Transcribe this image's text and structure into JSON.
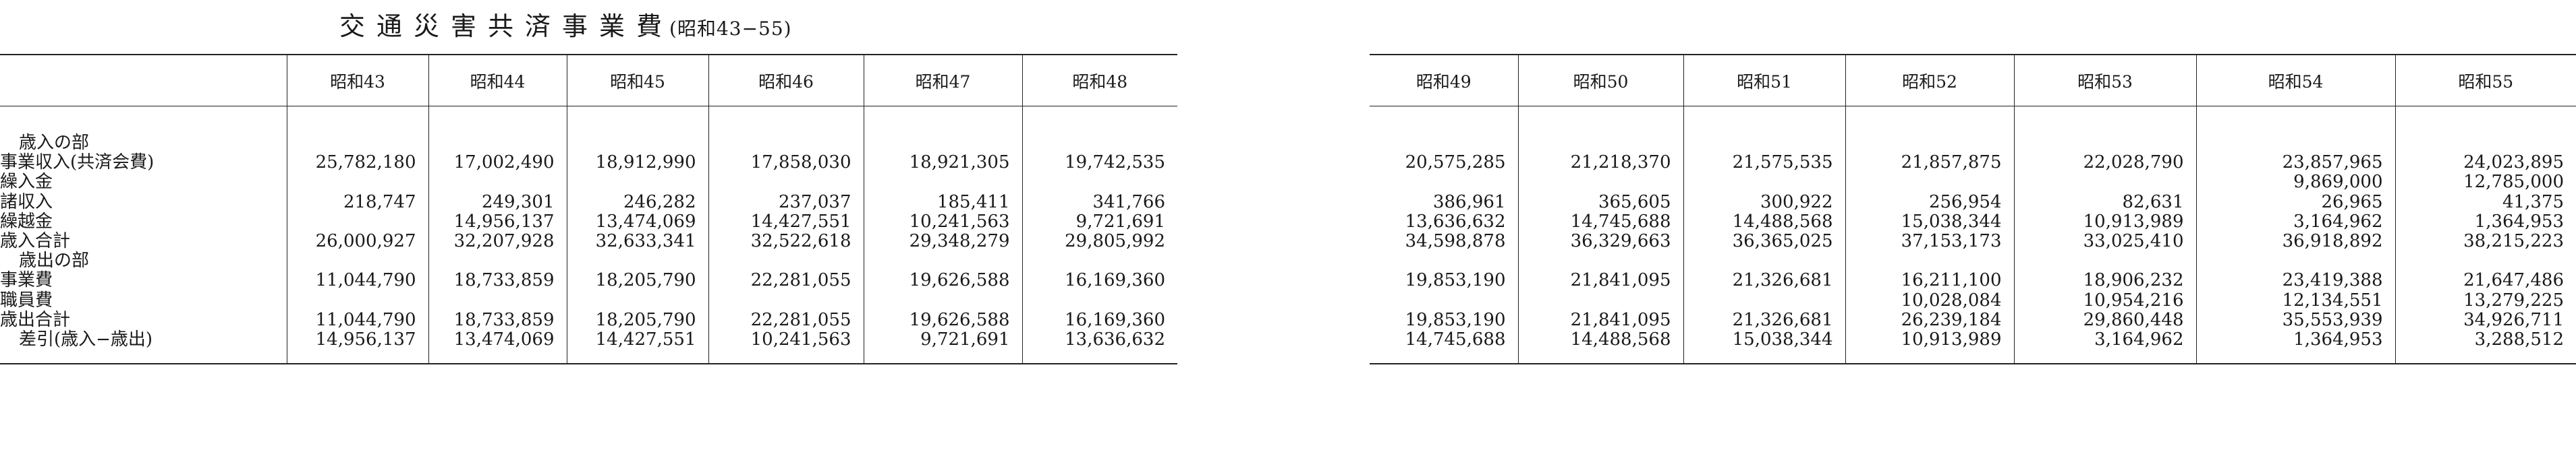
{
  "title": "交通災害共済事業費",
  "subtitle": "(昭和43−55)",
  "left_years": [
    "昭和43",
    "昭和44",
    "昭和45",
    "昭和46",
    "昭和47",
    "昭和48"
  ],
  "right_years": [
    "昭和49",
    "昭和50",
    "昭和51",
    "昭和52",
    "昭和53",
    "昭和54",
    "昭和55"
  ],
  "rows": [
    {
      "label": "歳入の部",
      "left": [
        "",
        "",
        "",
        "",
        "",
        ""
      ],
      "right": [
        "",
        "",
        "",
        "",
        "",
        "",
        ""
      ]
    },
    {
      "label": "事業収入(共済会費)",
      "left": [
        "25,782,180",
        "17,002,490",
        "18,912,990",
        "17,858,030",
        "18,921,305",
        "19,742,535"
      ],
      "right": [
        "20,575,285",
        "21,218,370",
        "21,575,535",
        "21,857,875",
        "22,028,790",
        "23,857,965",
        "24,023,895"
      ]
    },
    {
      "label": "繰入金",
      "left": [
        "",
        "",
        "",
        "",
        "",
        ""
      ],
      "right": [
        "",
        "",
        "",
        "",
        "",
        "9,869,000",
        "12,785,000"
      ]
    },
    {
      "label": "諸収入",
      "left": [
        "218,747",
        "249,301",
        "246,282",
        "237,037",
        "185,411",
        "341,766"
      ],
      "right": [
        "386,961",
        "365,605",
        "300,922",
        "256,954",
        "82,631",
        "26,965",
        "41,375"
      ]
    },
    {
      "label": "繰越金",
      "left": [
        "",
        "14,956,137",
        "13,474,069",
        "14,427,551",
        "10,241,563",
        "9,721,691"
      ],
      "right": [
        "13,636,632",
        "14,745,688",
        "14,488,568",
        "15,038,344",
        "10,913,989",
        "3,164,962",
        "1,364,953"
      ]
    },
    {
      "label": "歳入合計",
      "left": [
        "26,000,927",
        "32,207,928",
        "32,633,341",
        "32,522,618",
        "29,348,279",
        "29,805,992"
      ],
      "right": [
        "34,598,878",
        "36,329,663",
        "36,365,025",
        "37,153,173",
        "33,025,410",
        "36,918,892",
        "38,215,223"
      ]
    },
    {
      "label": "歳出の部",
      "left": [
        "",
        "",
        "",
        "",
        "",
        ""
      ],
      "right": [
        "",
        "",
        "",
        "",
        "",
        "",
        ""
      ]
    },
    {
      "label": "事業費",
      "left": [
        "11,044,790",
        "18,733,859",
        "18,205,790",
        "22,281,055",
        "19,626,588",
        "16,169,360"
      ],
      "right": [
        "19,853,190",
        "21,841,095",
        "21,326,681",
        "16,211,100",
        "18,906,232",
        "23,419,388",
        "21,647,486"
      ]
    },
    {
      "label": "職員費",
      "left": [
        "",
        "",
        "",
        "",
        "",
        ""
      ],
      "right": [
        "",
        "",
        "",
        "10,028,084",
        "10,954,216",
        "12,134,551",
        "13,279,225"
      ]
    },
    {
      "label": "歳出合計",
      "left": [
        "11,044,790",
        "18,733,859",
        "18,205,790",
        "22,281,055",
        "19,626,588",
        "16,169,360"
      ],
      "right": [
        "19,853,190",
        "21,841,095",
        "21,326,681",
        "26,239,184",
        "29,860,448",
        "35,553,939",
        "34,926,711"
      ]
    },
    {
      "label": "差引(歳入−歳出)",
      "left": [
        "14,956,137",
        "13,474,069",
        "14,427,551",
        "10,241,563",
        "9,721,691",
        "13,636,632"
      ],
      "right": [
        "14,745,688",
        "14,488,568",
        "15,038,344",
        "10,913,989",
        "3,164,962",
        "1,364,953",
        "3,288,512"
      ]
    }
  ]
}
